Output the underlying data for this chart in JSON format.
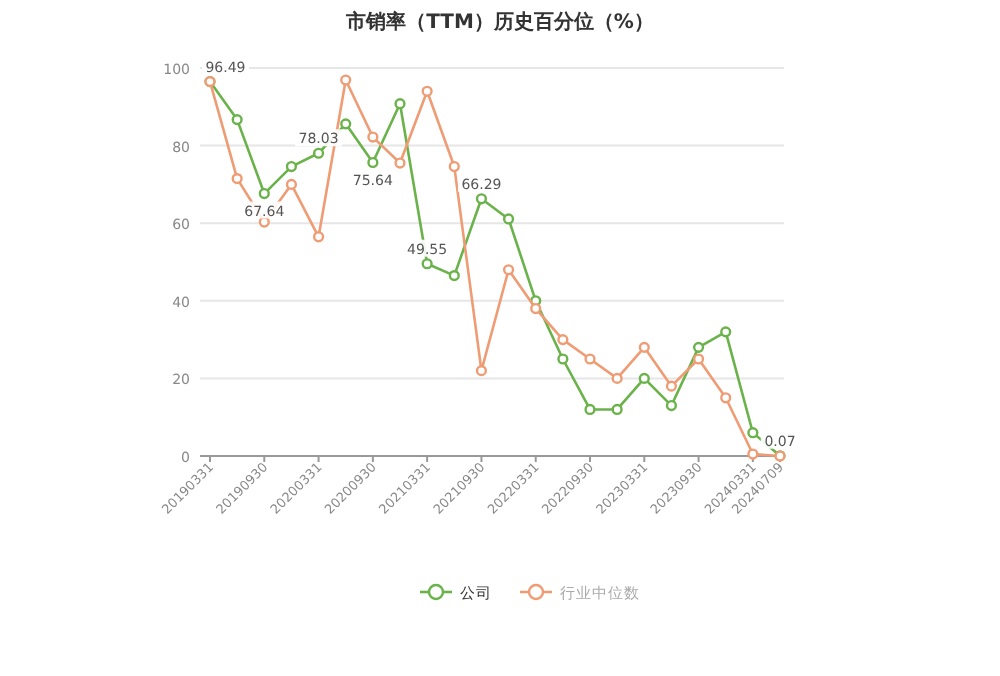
{
  "chart_data": {
    "type": "line",
    "title": "市销率（TTM）历史百分位（%）",
    "categories": [
      "20190331",
      null,
      "20190930",
      null,
      "20200331",
      null,
      "20200930",
      null,
      "20210331",
      null,
      "20210930",
      null,
      "20220331",
      null,
      "20220930",
      null,
      "20230331",
      null,
      "20230930",
      null,
      "20240331",
      "20240709"
    ],
    "series": [
      {
        "name": "公司",
        "color": "#6ab24a",
        "values": [
          96.49,
          86.7,
          67.64,
          74.6,
          78.03,
          85.6,
          75.64,
          90.8,
          49.55,
          46.5,
          66.29,
          61.1,
          40,
          25,
          12,
          12,
          20,
          13,
          28,
          32,
          6,
          0.07
        ],
        "value_labels": [
          "96.49",
          null,
          "67.64",
          null,
          "78.03",
          null,
          "75.64",
          null,
          "49.55",
          null,
          "66.29",
          null,
          null,
          null,
          null,
          null,
          null,
          null,
          null,
          null,
          null,
          "0.07"
        ]
      },
      {
        "name": "行业中位数",
        "color": "#ef9c74",
        "values": [
          96.5,
          71.5,
          60.3,
          70,
          56.5,
          96.9,
          82.2,
          75.5,
          94,
          74.6,
          22,
          48,
          38,
          30,
          25,
          20,
          28,
          18,
          25,
          15,
          0.5,
          0
        ]
      }
    ],
    "ylim": [
      0,
      100
    ],
    "yticks": [
      0,
      20,
      40,
      60,
      80,
      100
    ],
    "grid": "y",
    "legend": "bottom",
    "marker": "circle",
    "line_style": "solid"
  }
}
